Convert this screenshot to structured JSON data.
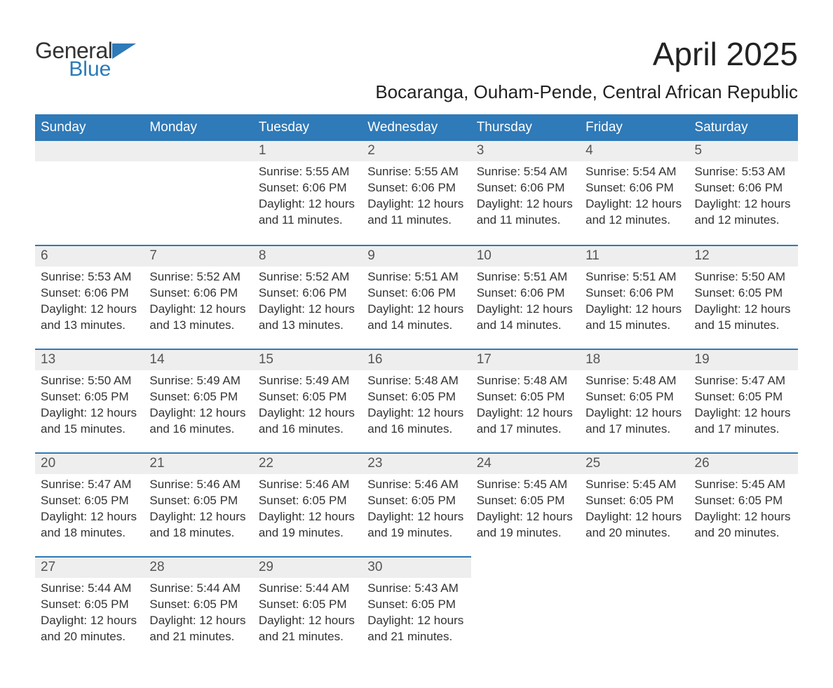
{
  "brand": {
    "word1": "General",
    "word2": "Blue",
    "flag_color": "#2f7ab8",
    "word1_color": "#333333",
    "word2_color": "#2a7ab8"
  },
  "header": {
    "month_title": "April 2025",
    "location": "Bocaranga, Ouham-Pende, Central African Republic"
  },
  "colors": {
    "header_bg": "#2f7ab8",
    "header_text": "#ffffff",
    "daynum_bg": "#eeeeee",
    "rule": "#2f7ab8",
    "text": "#333333"
  },
  "day_names": [
    "Sunday",
    "Monday",
    "Tuesday",
    "Wednesday",
    "Thursday",
    "Friday",
    "Saturday"
  ],
  "weeks": [
    [
      null,
      null,
      {
        "n": "1",
        "sunrise": "Sunrise: 5:55 AM",
        "sunset": "Sunset: 6:06 PM",
        "dl1": "Daylight: 12 hours",
        "dl2": "and 11 minutes."
      },
      {
        "n": "2",
        "sunrise": "Sunrise: 5:55 AM",
        "sunset": "Sunset: 6:06 PM",
        "dl1": "Daylight: 12 hours",
        "dl2": "and 11 minutes."
      },
      {
        "n": "3",
        "sunrise": "Sunrise: 5:54 AM",
        "sunset": "Sunset: 6:06 PM",
        "dl1": "Daylight: 12 hours",
        "dl2": "and 11 minutes."
      },
      {
        "n": "4",
        "sunrise": "Sunrise: 5:54 AM",
        "sunset": "Sunset: 6:06 PM",
        "dl1": "Daylight: 12 hours",
        "dl2": "and 12 minutes."
      },
      {
        "n": "5",
        "sunrise": "Sunrise: 5:53 AM",
        "sunset": "Sunset: 6:06 PM",
        "dl1": "Daylight: 12 hours",
        "dl2": "and 12 minutes."
      }
    ],
    [
      {
        "n": "6",
        "sunrise": "Sunrise: 5:53 AM",
        "sunset": "Sunset: 6:06 PM",
        "dl1": "Daylight: 12 hours",
        "dl2": "and 13 minutes."
      },
      {
        "n": "7",
        "sunrise": "Sunrise: 5:52 AM",
        "sunset": "Sunset: 6:06 PM",
        "dl1": "Daylight: 12 hours",
        "dl2": "and 13 minutes."
      },
      {
        "n": "8",
        "sunrise": "Sunrise: 5:52 AM",
        "sunset": "Sunset: 6:06 PM",
        "dl1": "Daylight: 12 hours",
        "dl2": "and 13 minutes."
      },
      {
        "n": "9",
        "sunrise": "Sunrise: 5:51 AM",
        "sunset": "Sunset: 6:06 PM",
        "dl1": "Daylight: 12 hours",
        "dl2": "and 14 minutes."
      },
      {
        "n": "10",
        "sunrise": "Sunrise: 5:51 AM",
        "sunset": "Sunset: 6:06 PM",
        "dl1": "Daylight: 12 hours",
        "dl2": "and 14 minutes."
      },
      {
        "n": "11",
        "sunrise": "Sunrise: 5:51 AM",
        "sunset": "Sunset: 6:06 PM",
        "dl1": "Daylight: 12 hours",
        "dl2": "and 15 minutes."
      },
      {
        "n": "12",
        "sunrise": "Sunrise: 5:50 AM",
        "sunset": "Sunset: 6:05 PM",
        "dl1": "Daylight: 12 hours",
        "dl2": "and 15 minutes."
      }
    ],
    [
      {
        "n": "13",
        "sunrise": "Sunrise: 5:50 AM",
        "sunset": "Sunset: 6:05 PM",
        "dl1": "Daylight: 12 hours",
        "dl2": "and 15 minutes."
      },
      {
        "n": "14",
        "sunrise": "Sunrise: 5:49 AM",
        "sunset": "Sunset: 6:05 PM",
        "dl1": "Daylight: 12 hours",
        "dl2": "and 16 minutes."
      },
      {
        "n": "15",
        "sunrise": "Sunrise: 5:49 AM",
        "sunset": "Sunset: 6:05 PM",
        "dl1": "Daylight: 12 hours",
        "dl2": "and 16 minutes."
      },
      {
        "n": "16",
        "sunrise": "Sunrise: 5:48 AM",
        "sunset": "Sunset: 6:05 PM",
        "dl1": "Daylight: 12 hours",
        "dl2": "and 16 minutes."
      },
      {
        "n": "17",
        "sunrise": "Sunrise: 5:48 AM",
        "sunset": "Sunset: 6:05 PM",
        "dl1": "Daylight: 12 hours",
        "dl2": "and 17 minutes."
      },
      {
        "n": "18",
        "sunrise": "Sunrise: 5:48 AM",
        "sunset": "Sunset: 6:05 PM",
        "dl1": "Daylight: 12 hours",
        "dl2": "and 17 minutes."
      },
      {
        "n": "19",
        "sunrise": "Sunrise: 5:47 AM",
        "sunset": "Sunset: 6:05 PM",
        "dl1": "Daylight: 12 hours",
        "dl2": "and 17 minutes."
      }
    ],
    [
      {
        "n": "20",
        "sunrise": "Sunrise: 5:47 AM",
        "sunset": "Sunset: 6:05 PM",
        "dl1": "Daylight: 12 hours",
        "dl2": "and 18 minutes."
      },
      {
        "n": "21",
        "sunrise": "Sunrise: 5:46 AM",
        "sunset": "Sunset: 6:05 PM",
        "dl1": "Daylight: 12 hours",
        "dl2": "and 18 minutes."
      },
      {
        "n": "22",
        "sunrise": "Sunrise: 5:46 AM",
        "sunset": "Sunset: 6:05 PM",
        "dl1": "Daylight: 12 hours",
        "dl2": "and 19 minutes."
      },
      {
        "n": "23",
        "sunrise": "Sunrise: 5:46 AM",
        "sunset": "Sunset: 6:05 PM",
        "dl1": "Daylight: 12 hours",
        "dl2": "and 19 minutes."
      },
      {
        "n": "24",
        "sunrise": "Sunrise: 5:45 AM",
        "sunset": "Sunset: 6:05 PM",
        "dl1": "Daylight: 12 hours",
        "dl2": "and 19 minutes."
      },
      {
        "n": "25",
        "sunrise": "Sunrise: 5:45 AM",
        "sunset": "Sunset: 6:05 PM",
        "dl1": "Daylight: 12 hours",
        "dl2": "and 20 minutes."
      },
      {
        "n": "26",
        "sunrise": "Sunrise: 5:45 AM",
        "sunset": "Sunset: 6:05 PM",
        "dl1": "Daylight: 12 hours",
        "dl2": "and 20 minutes."
      }
    ],
    [
      {
        "n": "27",
        "sunrise": "Sunrise: 5:44 AM",
        "sunset": "Sunset: 6:05 PM",
        "dl1": "Daylight: 12 hours",
        "dl2": "and 20 minutes."
      },
      {
        "n": "28",
        "sunrise": "Sunrise: 5:44 AM",
        "sunset": "Sunset: 6:05 PM",
        "dl1": "Daylight: 12 hours",
        "dl2": "and 21 minutes."
      },
      {
        "n": "29",
        "sunrise": "Sunrise: 5:44 AM",
        "sunset": "Sunset: 6:05 PM",
        "dl1": "Daylight: 12 hours",
        "dl2": "and 21 minutes."
      },
      {
        "n": "30",
        "sunrise": "Sunrise: 5:43 AM",
        "sunset": "Sunset: 6:05 PM",
        "dl1": "Daylight: 12 hours",
        "dl2": "and 21 minutes."
      },
      null,
      null,
      null
    ]
  ]
}
